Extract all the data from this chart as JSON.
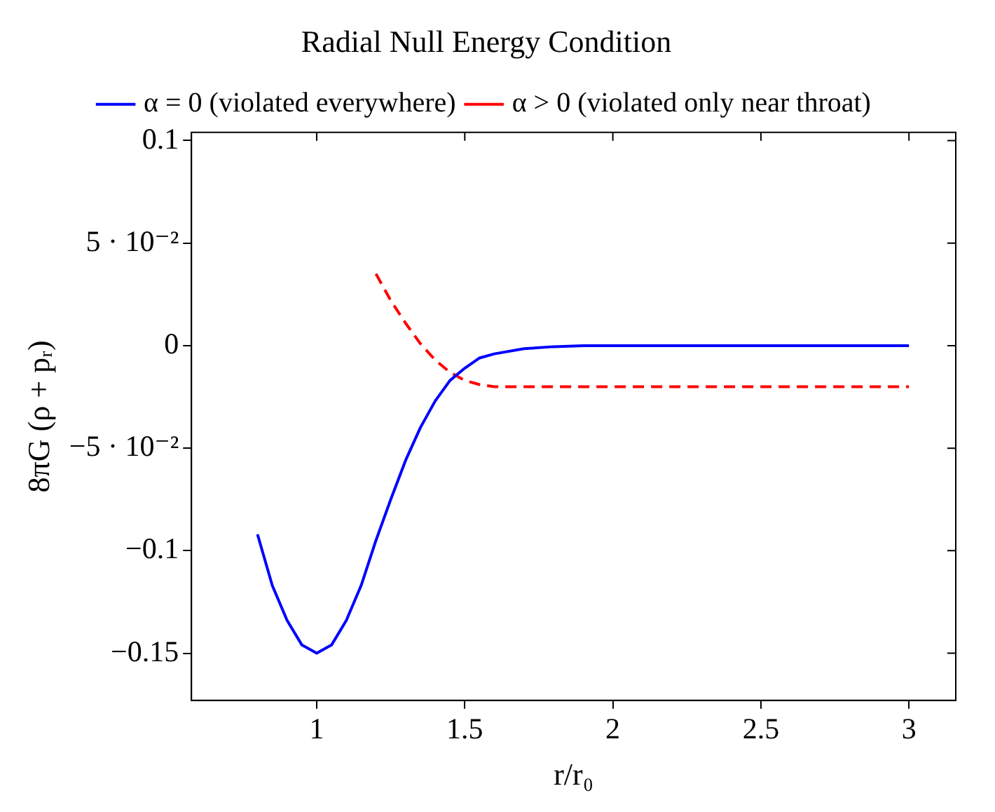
{
  "chart_data": {
    "type": "line",
    "title": "Radial Null Energy Condition",
    "xlabel": "r/r₀",
    "ylabel": "8πG (ρ + pᵣ)",
    "series": [
      {
        "name": "α = 0 (violated everywhere)",
        "color": "#0000ff",
        "line_style": "solid",
        "x": [
          0.8,
          0.85,
          0.9,
          0.95,
          1.0,
          1.05,
          1.1,
          1.15,
          1.2,
          1.25,
          1.3,
          1.35,
          1.4,
          1.45,
          1.5,
          1.55,
          1.6,
          1.7,
          1.8,
          1.9,
          2.0,
          2.5,
          3.0
        ],
        "values": [
          -0.092,
          -0.117,
          -0.134,
          -0.146,
          -0.15,
          -0.146,
          -0.134,
          -0.117,
          -0.095,
          -0.075,
          -0.056,
          -0.04,
          -0.027,
          -0.017,
          -0.011,
          -0.006,
          -0.004,
          -0.0015,
          -0.0005,
          0,
          0,
          0,
          0
        ]
      },
      {
        "name": "α > 0 (violated only near throat)",
        "color": "#ff0000",
        "line_style": "dashed",
        "x": [
          1.2,
          1.25,
          1.3,
          1.35,
          1.4,
          1.45,
          1.5,
          1.55,
          1.6,
          1.7,
          1.8,
          2.0,
          2.5,
          3.0
        ],
        "values": [
          0.035,
          0.022,
          0.011,
          0.001,
          -0.007,
          -0.013,
          -0.017,
          -0.019,
          -0.02,
          -0.02,
          -0.02,
          -0.02,
          -0.02,
          -0.02
        ]
      }
    ],
    "xlim": [
      0.577,
      3.158
    ],
    "xticks": [
      1,
      1.5,
      2,
      2.5,
      3
    ],
    "ylim": [
      -0.173,
      0.104
    ],
    "yticks": [
      {
        "value": 0.1,
        "label": "0.1"
      },
      {
        "value": 0.05,
        "label": "5 · 10⁻²"
      },
      {
        "value": 0,
        "label": "0"
      },
      {
        "value": -0.05,
        "label": "−5 · 10⁻²"
      },
      {
        "value": -0.1,
        "label": "−0.1"
      },
      {
        "value": -0.15,
        "label": "−0.15"
      }
    ],
    "grid": false,
    "legend": "top",
    "marker": "none"
  }
}
